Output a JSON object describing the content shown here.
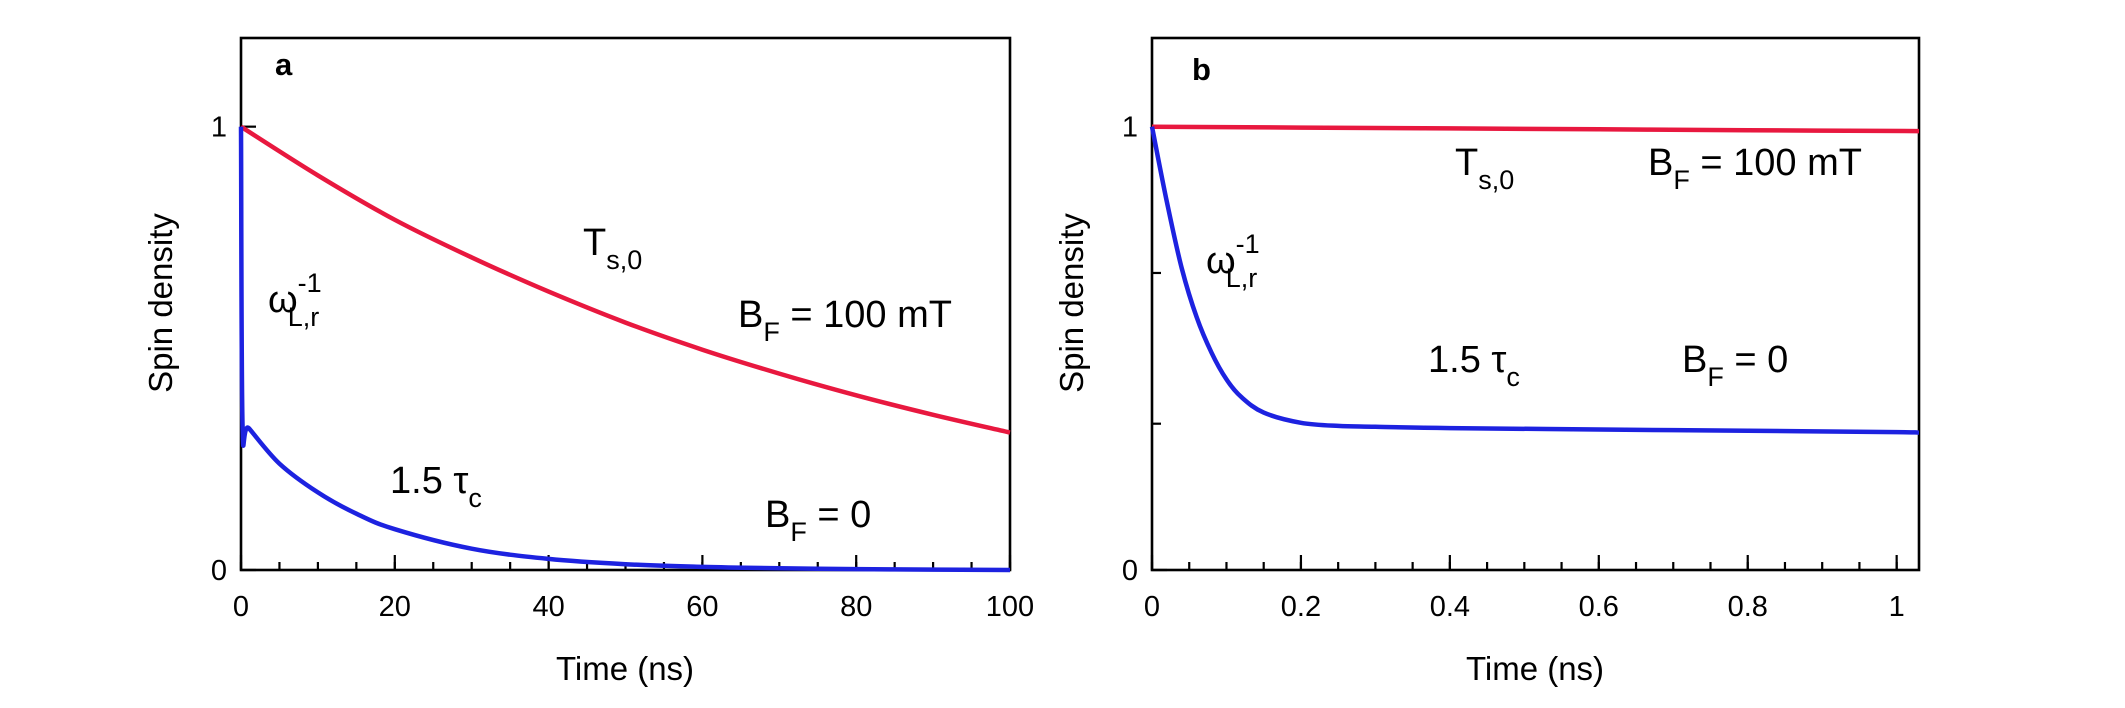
{
  "chart_data": [
    {
      "panel": "a",
      "type": "line",
      "xlabel": "Time (ns)",
      "ylabel": "Spin density",
      "xlim": [
        0,
        100
      ],
      "ylim": [
        0,
        1.2
      ],
      "xticks": [
        0,
        20,
        40,
        60,
        80,
        100
      ],
      "xtick_labels": [
        "0",
        "20",
        "40",
        "60",
        "80",
        "100"
      ],
      "xminor_step": 5,
      "yticks": [
        0,
        1
      ],
      "ytick_labels": [
        "0",
        "1"
      ],
      "yminor": [],
      "series": [
        {
          "name": "B_F = 100 mT",
          "color": "#e8183f",
          "x": [
            0,
            10,
            20,
            30,
            40,
            50,
            60,
            70,
            80,
            90,
            100
          ],
          "y": [
            1.0,
            0.89,
            0.79,
            0.705,
            0.628,
            0.558,
            0.497,
            0.443,
            0.394,
            0.35,
            0.31
          ]
        },
        {
          "name": "B_F = 0",
          "color": "#1d22e0",
          "x": [
            0,
            0.2,
            1,
            5,
            10,
            15,
            20,
            30,
            40,
            50,
            60,
            70,
            80,
            90,
            100
          ],
          "y": [
            1.0,
            0.33,
            0.32,
            0.24,
            0.175,
            0.127,
            0.092,
            0.048,
            0.025,
            0.013,
            0.007,
            0.004,
            0.002,
            0.001,
            0.0
          ]
        }
      ],
      "annotations": {
        "omega": {
          "main": "ω",
          "sup": "-1",
          "sub": "L,r"
        },
        "ts0": {
          "main": "T",
          "sub": "s,0"
        },
        "bf_high": {
          "main": "B",
          "sub": "F",
          "tail": " = 100 mT"
        },
        "tau": {
          "main": "1.5 τ",
          "sub": "c"
        },
        "bf_zero": {
          "main": "B",
          "sub": "F",
          "tail": " = 0"
        }
      }
    },
    {
      "panel": "b",
      "type": "line",
      "xlabel": "Time (ns)",
      "ylabel": "Spin density",
      "xlim": [
        0,
        1.03
      ],
      "ylim": [
        0,
        1.2
      ],
      "xticks": [
        0,
        0.2,
        0.4,
        0.6,
        0.8,
        1
      ],
      "xtick_labels": [
        "0",
        "0.2",
        "0.4",
        "0.6",
        "0.8",
        "1"
      ],
      "xminor_step": 0.05,
      "yticks": [
        0,
        1
      ],
      "ytick_labels": [
        "0",
        "1"
      ],
      "yminor": [
        0.33,
        0.67
      ],
      "series": [
        {
          "name": "B_F = 100 mT",
          "color": "#e8183f",
          "x": [
            0,
            0.2,
            0.4,
            0.6,
            0.8,
            1.03
          ],
          "y": [
            1.0,
            0.998,
            0.996,
            0.994,
            0.992,
            0.99
          ]
        },
        {
          "name": "B_F = 0",
          "color": "#1d22e0",
          "x": [
            0,
            0.02,
            0.04,
            0.06,
            0.08,
            0.1,
            0.12,
            0.15,
            0.2,
            0.25,
            0.3,
            0.4,
            0.6,
            0.8,
            1.0,
            1.03
          ],
          "y": [
            1.0,
            0.83,
            0.68,
            0.57,
            0.49,
            0.43,
            0.39,
            0.355,
            0.332,
            0.325,
            0.323,
            0.32,
            0.317,
            0.314,
            0.311,
            0.31
          ]
        }
      ],
      "annotations": {
        "omega": {
          "main": "ω",
          "sup": "-1",
          "sub": "L,r"
        },
        "ts0": {
          "main": "T",
          "sub": "s,0"
        },
        "bf_high": {
          "main": "B",
          "sub": "F",
          "tail": " = 100 mT"
        },
        "tau": {
          "main": "1.5 τ",
          "sub": "c"
        },
        "bf_zero": {
          "main": "B",
          "sub": "F",
          "tail": " = 0"
        }
      }
    }
  ]
}
